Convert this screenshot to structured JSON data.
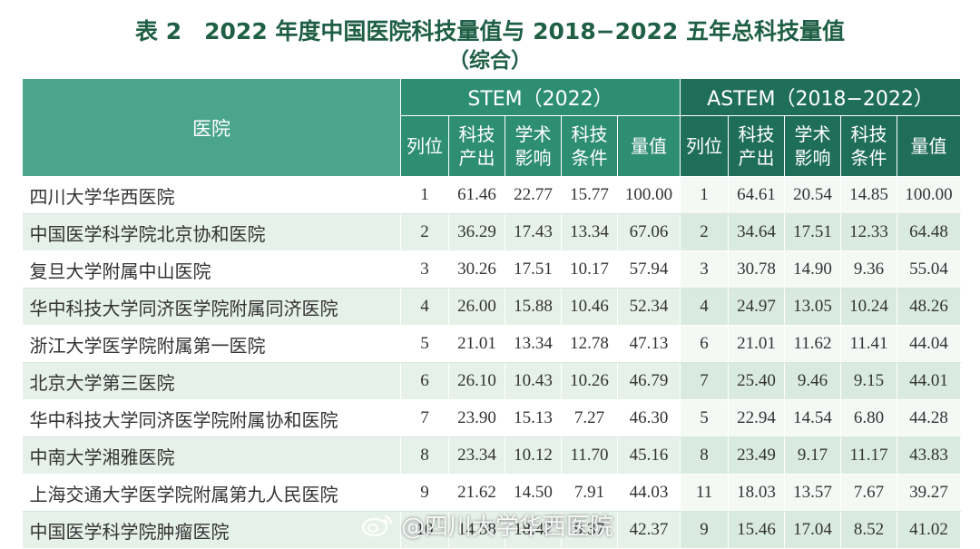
{
  "title": {
    "line1": "表 2　2022 年度中国医院科技量值与 2018−2022 五年总科技量值",
    "line2": "（综合）"
  },
  "table": {
    "hospital_header": "医院",
    "stem_header": "STEM（2022）",
    "astem_header": "ASTEM（2018−2022）",
    "sub_headers": [
      "列位",
      "科技\n产出",
      "学术\n影响",
      "科技\n条件",
      "量值"
    ],
    "rows": [
      {
        "hospital": "四川大学华西医院",
        "stem": [
          "1",
          "61.46",
          "22.77",
          "15.77",
          "100.00"
        ],
        "astem": [
          "1",
          "64.61",
          "20.54",
          "14.85",
          "100.00"
        ]
      },
      {
        "hospital": "中国医学科学院北京协和医院",
        "stem": [
          "2",
          "36.29",
          "17.43",
          "13.34",
          "67.06"
        ],
        "astem": [
          "2",
          "34.64",
          "17.51",
          "12.33",
          "64.48"
        ]
      },
      {
        "hospital": "复旦大学附属中山医院",
        "stem": [
          "3",
          "30.26",
          "17.51",
          "10.17",
          "57.94"
        ],
        "astem": [
          "3",
          "30.78",
          "14.90",
          "9.36",
          "55.04"
        ]
      },
      {
        "hospital": "华中科技大学同济医学院附属同济医院",
        "stem": [
          "4",
          "26.00",
          "15.88",
          "10.46",
          "52.34"
        ],
        "astem": [
          "4",
          "24.97",
          "13.05",
          "10.24",
          "48.26"
        ]
      },
      {
        "hospital": "浙江大学医学院附属第一医院",
        "stem": [
          "5",
          "21.01",
          "13.34",
          "12.78",
          "47.13"
        ],
        "astem": [
          "6",
          "21.01",
          "11.62",
          "11.41",
          "44.04"
        ]
      },
      {
        "hospital": "北京大学第三医院",
        "stem": [
          "6",
          "26.10",
          "10.43",
          "10.26",
          "46.79"
        ],
        "astem": [
          "7",
          "25.40",
          "9.46",
          "9.15",
          "44.01"
        ]
      },
      {
        "hospital": "华中科技大学同济医学院附属协和医院",
        "stem": [
          "7",
          "23.90",
          "15.13",
          "7.27",
          "46.30"
        ],
        "astem": [
          "5",
          "22.94",
          "14.54",
          "6.80",
          "44.28"
        ]
      },
      {
        "hospital": "中南大学湘雅医院",
        "stem": [
          "8",
          "23.34",
          "10.12",
          "11.70",
          "45.16"
        ],
        "astem": [
          "8",
          "23.49",
          "9.17",
          "11.17",
          "43.83"
        ]
      },
      {
        "hospital": "上海交通大学医学院附属第九人民医院",
        "stem": [
          "9",
          "21.62",
          "14.50",
          "7.91",
          "44.03"
        ],
        "astem": [
          "11",
          "18.03",
          "13.57",
          "7.67",
          "39.27"
        ]
      },
      {
        "hospital": "中国医学科学院肿瘤医院",
        "stem": [
          "10",
          "14.58",
          "18.42",
          "9.37",
          "42.37"
        ],
        "astem": [
          "9",
          "15.46",
          "17.04",
          "8.52",
          "41.02"
        ]
      }
    ]
  },
  "watermark": {
    "text": "@四川大学华西医院",
    "icon": "weibo-icon"
  }
}
